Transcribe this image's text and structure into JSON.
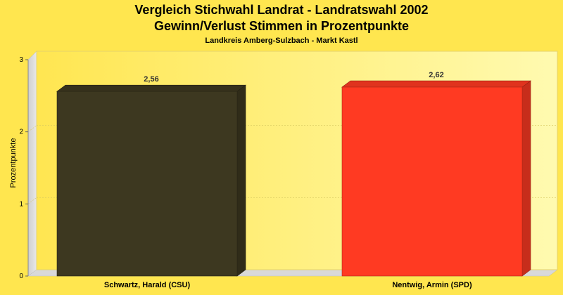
{
  "chart_data": {
    "type": "bar",
    "title_line1": "Vergleich Stichwahl Landrat - Landratswahl 2002",
    "title_line2": "Gewinn/Verlust Stimmen in Prozentpunkte",
    "subtitle": "Landkreis Amberg-Sulzbach - Markt Kastl",
    "xlabel": "",
    "ylabel": "Prozentpunkte",
    "ylim": [
      0,
      3
    ],
    "yticks": [
      "0",
      "1",
      "2",
      "3"
    ],
    "categories": [
      "Schwartz, Harald (CSU)",
      "Nentwig, Armin (SPD)"
    ],
    "values": [
      2.56,
      2.62
    ],
    "value_labels": [
      "2,56",
      "2,62"
    ],
    "colors": [
      "#3d3820",
      "#ff3a22"
    ],
    "grid": true,
    "legend": "none"
  }
}
